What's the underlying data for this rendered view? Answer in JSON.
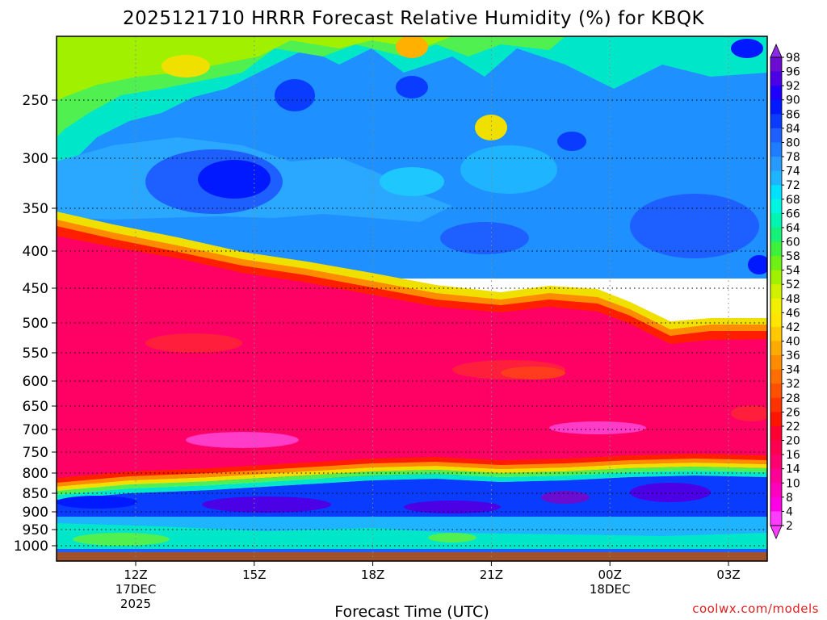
{
  "chart_data": {
    "type": "heatmap",
    "title": "2025121710 HRRR Forecast Relative Humidity (%) for KBQK",
    "xlabel": "Forecast Time (UTC)",
    "ylabel": "",
    "credit": "coolwx.com/models",
    "y_scale": "pressure (hPa, log-like, inverted)",
    "ylim": [
      1000,
      200
    ],
    "y_ticks": [
      {
        "label": "250",
        "value": 250
      },
      {
        "label": "300",
        "value": 300
      },
      {
        "label": "350",
        "value": 350
      },
      {
        "label": "400",
        "value": 400
      },
      {
        "label": "450",
        "value": 450
      },
      {
        "label": "500",
        "value": 500
      },
      {
        "label": "550",
        "value": 550
      },
      {
        "label": "600",
        "value": 600
      },
      {
        "label": "650",
        "value": 650
      },
      {
        "label": "700",
        "value": 700
      },
      {
        "label": "750",
        "value": 750
      },
      {
        "label": "800",
        "value": 800
      },
      {
        "label": "850",
        "value": 850
      },
      {
        "label": "900",
        "value": 900
      },
      {
        "label": "950",
        "value": 950
      },
      {
        "label": "1000",
        "value": 1000
      }
    ],
    "x_ticks": [
      {
        "line1": "12Z",
        "line2": "17DEC",
        "line3": "2025",
        "hour": 2
      },
      {
        "line1": "15Z",
        "line2": "",
        "line3": "",
        "hour": 5
      },
      {
        "line1": "18Z",
        "line2": "",
        "line3": "",
        "hour": 8
      },
      {
        "line1": "21Z",
        "line2": "",
        "line3": "",
        "hour": 11
      },
      {
        "line1": "00Z",
        "line2": "18DEC",
        "line3": "",
        "hour": 14
      },
      {
        "line1": "03Z",
        "line2": "",
        "line3": "",
        "hour": 17
      }
    ],
    "xlim": [
      0,
      18
    ],
    "grid": true,
    "colorbar": {
      "labels": [
        "98",
        "96",
        "92",
        "90",
        "86",
        "84",
        "80",
        "78",
        "74",
        "72",
        "68",
        "66",
        "64",
        "60",
        "58",
        "54",
        "52",
        "48",
        "46",
        "42",
        "40",
        "36",
        "34",
        "32",
        "28",
        "26",
        "22",
        "20",
        "16",
        "14",
        "10",
        "8",
        "4",
        "2"
      ],
      "colors": [
        "#8a2be2",
        "#6a0dd0",
        "#4b00e6",
        "#1e00ff",
        "#0019ff",
        "#0a3cff",
        "#1e60ff",
        "#1e7cff",
        "#2899ff",
        "#1eb4ff",
        "#00e0ff",
        "#00f5e0",
        "#00f5b0",
        "#14f078",
        "#3cf03c",
        "#6ef014",
        "#a0f000",
        "#d0f000",
        "#f0f000",
        "#ffe600",
        "#ffc800",
        "#ffaa00",
        "#ff8c00",
        "#ff6e00",
        "#ff5000",
        "#ff3200",
        "#ff1400",
        "#ff0032",
        "#ff0050",
        "#ff006e",
        "#ff0096",
        "#ff00be",
        "#ff00e6",
        "#ff3cff"
      ]
    },
    "rh_profile_summary": [
      {
        "layer_hPa": "200-380",
        "rh_pct": "60-90",
        "note": "moist upper layer"
      },
      {
        "layer_hPa": "380-800",
        "rh_pct": "10-25",
        "note": "very dry mid layer, top descending from ~370 to ~520 hPa"
      },
      {
        "layer_hPa": "800-900",
        "rh_pct": "84-98",
        "note": "moist low layer"
      },
      {
        "layer_hPa": "900-1000",
        "rh_pct": "56-74",
        "note": "near-surface layer"
      }
    ]
  }
}
